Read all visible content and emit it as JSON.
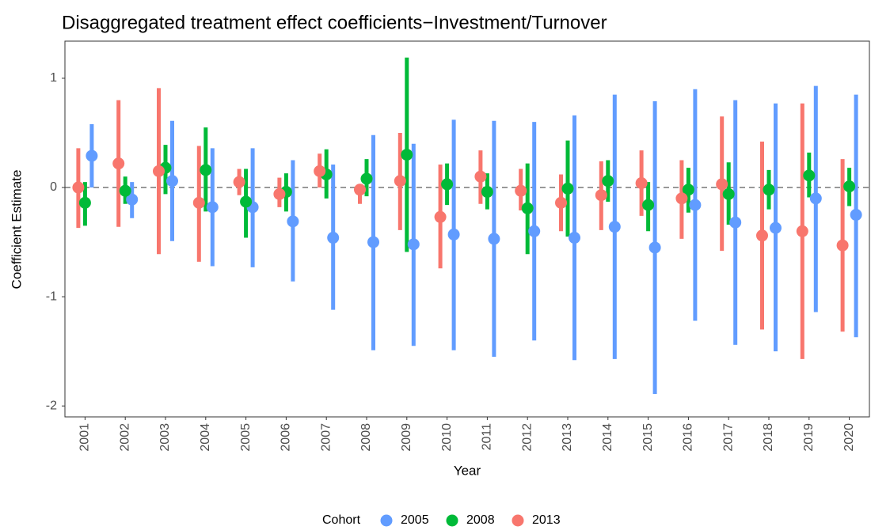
{
  "chart_data": {
    "type": "errorbar",
    "title": "Disaggregated treatment effect coefficients−Investment/Turnover",
    "x_label": "Year",
    "y_label": "Coefficient Estimate",
    "legend_title": "Cohort",
    "categories": [
      "2001",
      "2002",
      "2003",
      "2004",
      "2005",
      "2006",
      "2007",
      "2008",
      "2009",
      "2010",
      "2011",
      "2012",
      "2013",
      "2014",
      "2015",
      "2016",
      "2017",
      "2018",
      "2019",
      "2020"
    ],
    "series": [
      {
        "name": "2005",
        "color": "#619cff",
        "values": [
          0.29,
          -0.11,
          0.06,
          -0.18,
          -0.18,
          -0.31,
          -0.46,
          -0.5,
          -0.52,
          -0.43,
          -0.47,
          -0.4,
          -0.46,
          -0.36,
          -0.55,
          -0.16,
          -0.32,
          -0.37,
          -0.1,
          -0.25
        ],
        "lower": [
          0.0,
          -0.28,
          -0.49,
          -0.72,
          -0.73,
          -0.86,
          -1.12,
          -1.49,
          -1.45,
          -1.49,
          -1.55,
          -1.4,
          -1.58,
          -1.57,
          -1.89,
          -1.22,
          -1.44,
          -1.5,
          -1.14,
          -1.37
        ],
        "upper": [
          0.58,
          0.05,
          0.61,
          0.36,
          0.36,
          0.25,
          0.21,
          0.48,
          0.4,
          0.62,
          0.61,
          0.6,
          0.66,
          0.85,
          0.79,
          0.9,
          0.8,
          0.77,
          0.93,
          0.85
        ]
      },
      {
        "name": "2008",
        "color": "#00ba38",
        "values": [
          -0.14,
          -0.03,
          0.18,
          0.16,
          -0.13,
          -0.04,
          0.12,
          0.08,
          0.3,
          0.03,
          -0.04,
          -0.19,
          -0.01,
          0.06,
          -0.16,
          -0.02,
          -0.06,
          -0.02,
          0.11,
          0.01
        ],
        "lower": [
          -0.35,
          -0.15,
          -0.06,
          -0.22,
          -0.46,
          -0.22,
          -0.1,
          -0.08,
          -0.59,
          -0.16,
          -0.2,
          -0.61,
          -0.45,
          -0.13,
          -0.4,
          -0.23,
          -0.34,
          -0.2,
          -0.09,
          -0.17
        ],
        "upper": [
          0.05,
          0.1,
          0.39,
          0.55,
          0.17,
          0.13,
          0.35,
          0.26,
          1.19,
          0.22,
          0.13,
          0.22,
          0.43,
          0.25,
          0.05,
          0.18,
          0.23,
          0.16,
          0.32,
          0.18
        ]
      },
      {
        "name": "2013",
        "color": "#f8766d",
        "values": [
          0.0,
          0.22,
          0.15,
          -0.14,
          0.05,
          -0.06,
          0.15,
          -0.02,
          0.06,
          -0.27,
          0.1,
          -0.03,
          -0.14,
          -0.07,
          0.04,
          -0.1,
          0.03,
          -0.44,
          -0.4,
          -0.53
        ],
        "lower": [
          -0.37,
          -0.36,
          -0.61,
          -0.68,
          -0.07,
          -0.18,
          0.0,
          -0.15,
          -0.39,
          -0.74,
          -0.15,
          -0.21,
          -0.4,
          -0.39,
          -0.26,
          -0.47,
          -0.58,
          -1.3,
          -1.57,
          -1.32
        ],
        "upper": [
          0.36,
          0.8,
          0.91,
          0.38,
          0.17,
          0.09,
          0.31,
          0.0,
          0.5,
          0.21,
          0.34,
          0.17,
          0.12,
          0.24,
          0.34,
          0.25,
          0.65,
          0.42,
          0.77,
          0.26
        ]
      }
    ],
    "reference_line": 0,
    "ylim": [
      -2.1,
      1.34
    ],
    "yticks": [
      -2,
      -1,
      0,
      1
    ],
    "legend": "bottom"
  }
}
